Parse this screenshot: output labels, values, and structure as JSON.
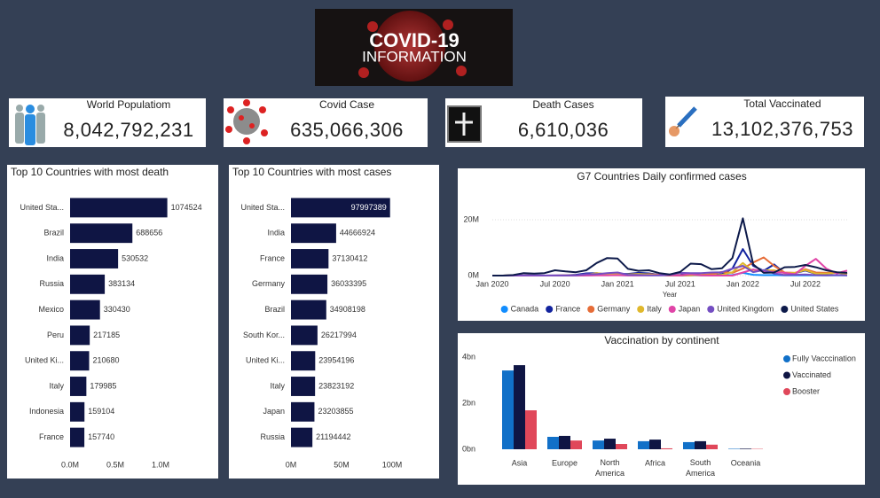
{
  "logo": {
    "title": "COVID-19",
    "subtitle": "INFORMATION"
  },
  "cards": [
    {
      "label": "World Populatiom",
      "value": "8,042,792,231"
    },
    {
      "label": "Covid Case",
      "value": "635,066,306"
    },
    {
      "label": "Death Cases",
      "value": "6,610,036"
    },
    {
      "label": "Total Vaccinated",
      "value": "13,102,376,753"
    }
  ],
  "chart_data": [
    {
      "type": "bar",
      "orientation": "horizontal",
      "title": "Top 10 Countries with most death",
      "categories": [
        "United Sta...",
        "Brazil",
        "India",
        "Russia",
        "Mexico",
        "Peru",
        "United Ki...",
        "Italy",
        "Indonesia",
        "France"
      ],
      "values": [
        1074524,
        688656,
        530532,
        383134,
        330430,
        217185,
        210680,
        179985,
        159104,
        157740
      ],
      "color": "#0f1544",
      "xlim": [
        0,
        1500000
      ],
      "xticks": [
        {
          "value": 0,
          "label": "0.0M"
        },
        {
          "value": 500000,
          "label": "0.5M"
        },
        {
          "value": 1000000,
          "label": "1.0M"
        }
      ]
    },
    {
      "type": "bar",
      "orientation": "horizontal",
      "title": "Top 10 Countries with most cases",
      "categories": [
        "United Sta...",
        "India",
        "France",
        "Germany",
        "Brazil",
        "South Kor...",
        "United Ki...",
        "Italy",
        "Japan",
        "Russia"
      ],
      "values": [
        97997389,
        44666924,
        37130412,
        36033395,
        34908198,
        26217994,
        23954196,
        23823192,
        23203855,
        21194442
      ],
      "color": "#0f1544",
      "xlim": [
        0,
        100000000
      ],
      "xticks": [
        {
          "value": 0,
          "label": "0M"
        },
        {
          "value": 50000000,
          "label": "50M"
        },
        {
          "value": 100000000,
          "label": "100M"
        }
      ]
    },
    {
      "type": "line",
      "title": "G7 Countries Daily confirmed cases",
      "x_label": "Year",
      "categories": [
        "Jan 2020",
        null,
        null,
        null,
        null,
        null,
        "Jul 2020",
        null,
        null,
        null,
        null,
        null,
        "Jan 2021",
        null,
        null,
        null,
        null,
        null,
        "Jul 2021",
        null,
        null,
        null,
        null,
        null,
        "Jan 2022",
        null,
        null,
        null,
        null,
        null,
        "Jul 2022",
        null,
        null,
        null,
        null
      ],
      "ylim": [
        0,
        30000000
      ],
      "yticks": [
        {
          "value": 0,
          "label": "0M"
        },
        {
          "value": 20000000,
          "label": "20M"
        }
      ],
      "grid": true,
      "legend": "bottom",
      "series": [
        {
          "name": "Canada",
          "color": "#118dff",
          "values": [
            0,
            0,
            8000,
            45000,
            35000,
            12000,
            11000,
            12000,
            30000,
            70000,
            150000,
            200000,
            170000,
            80000,
            100000,
            200000,
            150000,
            30000,
            10000,
            50000,
            100000,
            80000,
            60000,
            200000,
            1000000,
            300000,
            150000,
            200000,
            100000,
            50000,
            100000,
            100000,
            80000,
            80000,
            60000
          ]
        },
        {
          "name": "France",
          "color": "#12239e",
          "values": [
            0,
            0,
            50000,
            100000,
            30000,
            10000,
            20000,
            100000,
            300000,
            800000,
            900000,
            400000,
            600000,
            600000,
            1000000,
            800000,
            300000,
            60000,
            300000,
            600000,
            200000,
            100000,
            500000,
            2500000,
            9500000,
            3500000,
            1700000,
            4000000,
            900000,
            900000,
            1800000,
            600000,
            600000,
            1100000,
            500000
          ]
        },
        {
          "name": "Germany",
          "color": "#e66c37",
          "values": [
            0,
            0,
            70000,
            90000,
            20000,
            10000,
            10000,
            30000,
            50000,
            400000,
            500000,
            700000,
            500000,
            200000,
            300000,
            500000,
            300000,
            30000,
            20000,
            100000,
            300000,
            500000,
            1300000,
            1000000,
            2500000,
            4700000,
            6500000,
            3500000,
            1100000,
            1000000,
            2300000,
            1100000,
            1000000,
            1200000,
            600000
          ]
        },
        {
          "name": "Italy",
          "color": "#e0b82c",
          "values": [
            0,
            0,
            70000,
            50000,
            10000,
            10000,
            10000,
            30000,
            40000,
            300000,
            900000,
            500000,
            400000,
            400000,
            600000,
            400000,
            150000,
            30000,
            150000,
            200000,
            100000,
            100000,
            300000,
            1200000,
            4500000,
            1400000,
            1900000,
            1900000,
            900000,
            1000000,
            2000000,
            700000,
            700000,
            1000000,
            700000
          ]
        },
        {
          "name": "Japan",
          "color": "#e044a7",
          "values": [
            0,
            0,
            2000,
            10000,
            3000,
            2000,
            20000,
            30000,
            15000,
            20000,
            50000,
            100000,
            150000,
            30000,
            30000,
            100000,
            150000,
            50000,
            100000,
            500000,
            100000,
            10000,
            5000,
            10000,
            1100000,
            2200000,
            1500000,
            1400000,
            1000000,
            500000,
            3500000,
            6000000,
            2500000,
            800000,
            1800000
          ]
        },
        {
          "name": "United Kingdom",
          "color": "#744ec2",
          "values": [
            0,
            0,
            30000,
            130000,
            60000,
            30000,
            20000,
            30000,
            100000,
            500000,
            500000,
            900000,
            1100000,
            300000,
            200000,
            70000,
            70000,
            300000,
            1000000,
            900000,
            900000,
            1100000,
            1200000,
            2500000,
            3500000,
            1200000,
            2000000,
            800000,
            200000,
            300000,
            400000,
            150000,
            100000,
            200000,
            100000
          ]
        },
        {
          "name": "United States",
          "color": "#0d1a4a",
          "values": [
            0,
            0,
            200000,
            900000,
            700000,
            900000,
            1900000,
            1500000,
            1200000,
            1900000,
            4500000,
            6300000,
            6100000,
            2400000,
            1700000,
            1900000,
            900000,
            400000,
            1300000,
            4300000,
            4100000,
            2300000,
            2600000,
            6300000,
            20500000,
            4000000,
            1000000,
            1100000,
            3000000,
            3100000,
            3800000,
            3000000,
            1900000,
            1200000,
            1000000
          ]
        }
      ]
    },
    {
      "type": "bar",
      "orientation": "vertical",
      "title": "Vaccination by continent",
      "categories": [
        "Asia",
        "Europe",
        "North America",
        "Africa",
        "South America",
        "Oceania"
      ],
      "ylim": [
        0,
        4400000000
      ],
      "yticks": [
        {
          "value": 0,
          "label": "0bn"
        },
        {
          "value": 2000000000,
          "label": "2bn"
        },
        {
          "value": 4000000000,
          "label": "4bn"
        }
      ],
      "legend": "right",
      "series": [
        {
          "name": "Fully Vacccination",
          "color": "#1170c8",
          "values": [
            3420000000,
            540000000,
            380000000,
            350000000,
            310000000,
            20000000
          ]
        },
        {
          "name": "Vaccinated",
          "color": "#0f1544",
          "values": [
            3650000000,
            580000000,
            460000000,
            420000000,
            350000000,
            25000000
          ]
        },
        {
          "name": "Booster",
          "color": "#e0475a",
          "values": [
            1690000000,
            380000000,
            230000000,
            40000000,
            200000000,
            15000000
          ]
        }
      ]
    }
  ]
}
